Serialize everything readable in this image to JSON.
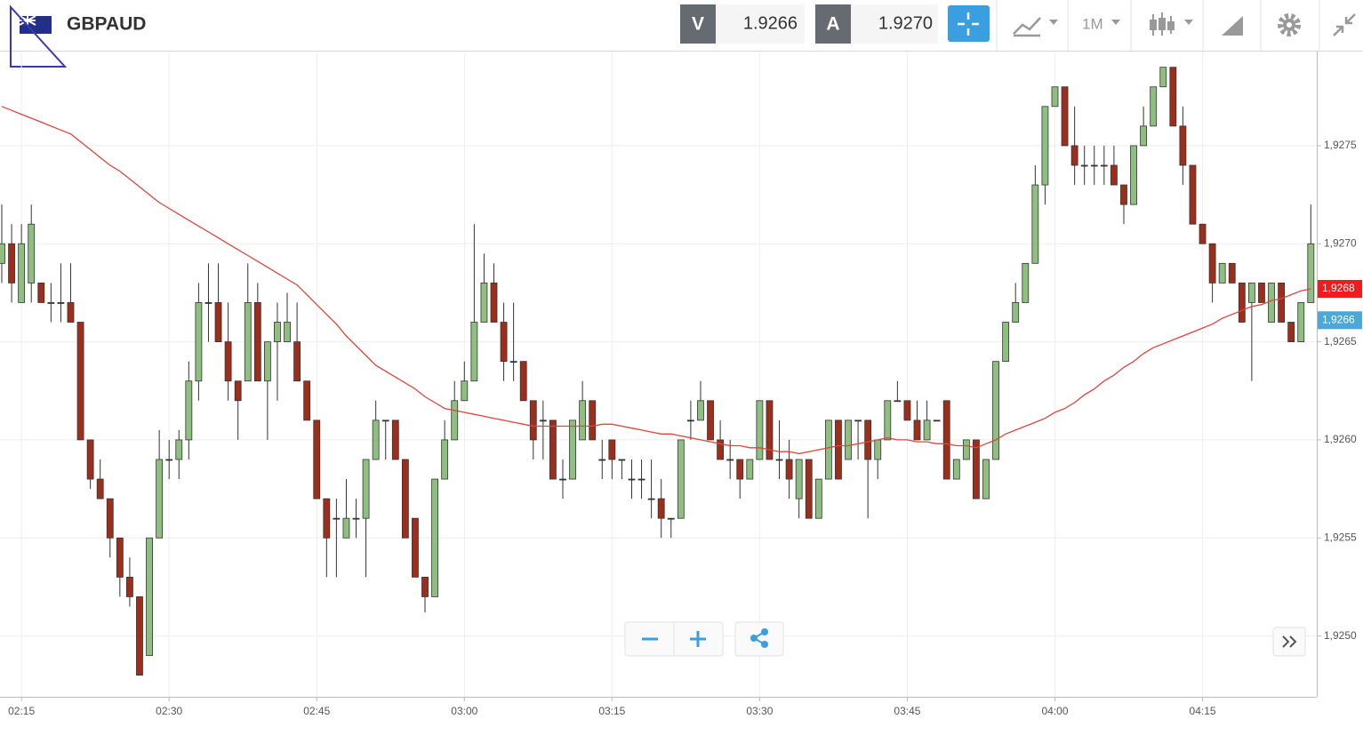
{
  "header": {
    "symbol": "GBPAUD",
    "bid_label": "V",
    "bid": "1.9266",
    "ask_label": "A",
    "ask": "1.9270",
    "timeframe": "1M"
  },
  "chart_data": {
    "type": "candlestick",
    "categories": [
      null,
      null,
      "02:15",
      null,
      null,
      null,
      null,
      null,
      null,
      null,
      null,
      null,
      null,
      null,
      null,
      null,
      null,
      "02:30",
      null,
      null,
      null,
      null,
      null,
      null,
      null,
      null,
      null,
      null,
      null,
      null,
      null,
      null,
      "02:45",
      null,
      null,
      null,
      null,
      null,
      null,
      null,
      null,
      null,
      null,
      null,
      null,
      null,
      null,
      "03:00",
      null,
      null,
      null,
      null,
      null,
      null,
      null,
      null,
      null,
      null,
      null,
      null,
      null,
      null,
      "03:15",
      null,
      null,
      null,
      null,
      null,
      null,
      null,
      null,
      null,
      null,
      null,
      null,
      null,
      null,
      "03:30",
      null,
      null,
      null,
      null,
      null,
      null,
      null,
      null,
      null,
      null,
      null,
      null,
      null,
      null,
      "03:45",
      null,
      null,
      null,
      null,
      null,
      null,
      null,
      null,
      null,
      null,
      null,
      null,
      null,
      null,
      "04:00",
      null,
      null,
      null,
      null,
      null,
      null,
      null,
      null,
      null,
      null,
      null,
      null,
      null,
      null,
      "04:15",
      null,
      null,
      null,
      null,
      null,
      null,
      null,
      null,
      null,
      null,
      null
    ],
    "ohlc": [
      [
        1.9269,
        1.9272,
        1.9268,
        1.927
      ],
      [
        1.927,
        1.9271,
        1.9267,
        1.9268
      ],
      [
        1.9267,
        1.9271,
        1.9267,
        1.927
      ],
      [
        1.9268,
        1.9272,
        1.9267,
        1.9271
      ],
      [
        1.9268,
        1.9268,
        1.9267,
        1.9267
      ],
      [
        1.9267,
        1.9268,
        1.9266,
        1.9267
      ],
      [
        1.9267,
        1.9269,
        1.9266,
        1.9267
      ],
      [
        1.9267,
        1.9269,
        1.9266,
        1.9266
      ],
      [
        1.9266,
        1.9266,
        1.926,
        1.926
      ],
      [
        1.926,
        1.926,
        1.92575,
        1.9258
      ],
      [
        1.9258,
        1.9259,
        1.9257,
        1.9257
      ],
      [
        1.9257,
        1.9257,
        1.9254,
        1.9255
      ],
      [
        1.9255,
        1.9255,
        1.9252,
        1.9253
      ],
      [
        1.9253,
        1.9254,
        1.92515,
        1.9252
      ],
      [
        1.9252,
        1.9252,
        1.9248,
        1.9248
      ],
      [
        1.9249,
        1.9255,
        1.9249,
        1.9255
      ],
      [
        1.9255,
        1.92605,
        1.9255,
        1.9259
      ],
      [
        1.9259,
        1.926,
        1.9258,
        1.9259
      ],
      [
        1.9259,
        1.92605,
        1.9258,
        1.926
      ],
      [
        1.926,
        1.9264,
        1.9259,
        1.9263
      ],
      [
        1.9263,
        1.9268,
        1.9262,
        1.9267
      ],
      [
        1.9267,
        1.9269,
        1.9265,
        1.9267
      ],
      [
        1.9267,
        1.9269,
        1.9265,
        1.9265
      ],
      [
        1.9265,
        1.9267,
        1.9262,
        1.9263
      ],
      [
        1.9263,
        1.9263,
        1.926,
        1.9262
      ],
      [
        1.9263,
        1.9269,
        1.9263,
        1.9267
      ],
      [
        1.9267,
        1.9268,
        1.9263,
        1.9263
      ],
      [
        1.9263,
        1.9265,
        1.926,
        1.9265
      ],
      [
        1.9265,
        1.9267,
        1.9262,
        1.9266
      ],
      [
        1.9265,
        1.92675,
        1.9265,
        1.9266
      ],
      [
        1.9265,
        1.9267,
        1.9263,
        1.9263
      ],
      [
        1.9263,
        1.9263,
        1.9261,
        1.9261
      ],
      [
        1.9261,
        1.9261,
        1.9257,
        1.9257
      ],
      [
        1.9257,
        1.9257,
        1.9253,
        1.9255
      ],
      [
        1.9256,
        1.9257,
        1.9253,
        1.9256
      ],
      [
        1.9255,
        1.9258,
        1.9255,
        1.9256
      ],
      [
        1.9256,
        1.9257,
        1.9255,
        1.9256
      ],
      [
        1.9256,
        1.9259,
        1.9253,
        1.9259
      ],
      [
        1.9259,
        1.9262,
        1.9259,
        1.9261
      ],
      [
        1.9261,
        1.9261,
        1.9259,
        1.9261
      ],
      [
        1.9261,
        1.9261,
        1.9259,
        1.9259
      ],
      [
        1.9259,
        1.9259,
        1.9255,
        1.9255
      ],
      [
        1.9256,
        1.9256,
        1.9253,
        1.9253
      ],
      [
        1.9253,
        1.9253,
        1.92512,
        1.9252
      ],
      [
        1.9252,
        1.9258,
        1.9252,
        1.9258
      ],
      [
        1.9258,
        1.9261,
        1.9258,
        1.926
      ],
      [
        1.926,
        1.9263,
        1.926,
        1.9262
      ],
      [
        1.9262,
        1.9264,
        1.9262,
        1.9263
      ],
      [
        1.9263,
        1.9271,
        1.9263,
        1.9266
      ],
      [
        1.9266,
        1.92695,
        1.9266,
        1.9268
      ],
      [
        1.9268,
        1.9269,
        1.9266,
        1.9266
      ],
      [
        1.9266,
        1.9267,
        1.9263,
        1.9264
      ],
      [
        1.9264,
        1.9267,
        1.9263,
        1.9264
      ],
      [
        1.9264,
        1.9264,
        1.9262,
        1.9262
      ],
      [
        1.9262,
        1.9262,
        1.9259,
        1.926
      ],
      [
        1.9261,
        1.9262,
        1.9259,
        1.9261
      ],
      [
        1.9261,
        1.9261,
        1.9258,
        1.9258
      ],
      [
        1.9258,
        1.9259,
        1.9257,
        1.9258
      ],
      [
        1.9258,
        1.9261,
        1.9258,
        1.9261
      ],
      [
        1.926,
        1.9263,
        1.926,
        1.9262
      ],
      [
        1.9262,
        1.9262,
        1.926,
        1.926
      ],
      [
        1.9259,
        1.926,
        1.9258,
        1.9259
      ],
      [
        1.926,
        1.926,
        1.9258,
        1.9259
      ],
      [
        1.9259,
        1.9259,
        1.9258,
        1.9259
      ],
      [
        1.9258,
        1.9259,
        1.9257,
        1.9258
      ],
      [
        1.9258,
        1.9259,
        1.9257,
        1.9258
      ],
      [
        1.9257,
        1.9259,
        1.9256,
        1.9257
      ],
      [
        1.9257,
        1.9258,
        1.9255,
        1.9256
      ],
      [
        1.9256,
        1.9256,
        1.9255,
        1.9256
      ],
      [
        1.9256,
        1.926,
        1.9256,
        1.926
      ],
      [
        1.9261,
        1.9262,
        1.926,
        1.9261
      ],
      [
        1.9261,
        1.9263,
        1.9261,
        1.9262
      ],
      [
        1.9262,
        1.9262,
        1.926,
        1.926
      ],
      [
        1.926,
        1.9261,
        1.9259,
        1.9259
      ],
      [
        1.9259,
        1.926,
        1.9258,
        1.9259
      ],
      [
        1.9259,
        1.9259,
        1.9257,
        1.9258
      ],
      [
        1.9258,
        1.9259,
        1.9258,
        1.9259
      ],
      [
        1.9259,
        1.9262,
        1.9259,
        1.9262
      ],
      [
        1.9262,
        1.9262,
        1.9259,
        1.9259
      ],
      [
        1.9259,
        1.9261,
        1.9258,
        1.9259
      ],
      [
        1.9259,
        1.926,
        1.9257,
        1.9258
      ],
      [
        1.9257,
        1.9259,
        1.9256,
        1.9259
      ],
      [
        1.9259,
        1.9259,
        1.9256,
        1.9256
      ],
      [
        1.9256,
        1.9258,
        1.9256,
        1.9258
      ],
      [
        1.9258,
        1.9261,
        1.9258,
        1.9261
      ],
      [
        1.9261,
        1.9261,
        1.9258,
        1.9258
      ],
      [
        1.9259,
        1.9261,
        1.9259,
        1.9261
      ],
      [
        1.9261,
        1.9261,
        1.9259,
        1.9261
      ],
      [
        1.9261,
        1.9261,
        1.9256,
        1.9259
      ],
      [
        1.9259,
        1.926,
        1.9258,
        1.926
      ],
      [
        1.926,
        1.9262,
        1.926,
        1.9262
      ],
      [
        1.9262,
        1.9263,
        1.9262,
        1.9262
      ],
      [
        1.9262,
        1.9262,
        1.9261,
        1.9261
      ],
      [
        1.9261,
        1.9262,
        1.926,
        1.926
      ],
      [
        1.926,
        1.9262,
        1.926,
        1.9261
      ],
      [
        1.9261,
        1.9261,
        1.9261,
        1.9261
      ],
      [
        1.9262,
        1.9262,
        1.9258,
        1.9258
      ],
      [
        1.9258,
        1.9259,
        1.9258,
        1.9259
      ],
      [
        1.9259,
        1.926,
        1.9259,
        1.926
      ],
      [
        1.926,
        1.926,
        1.9257,
        1.9257
      ],
      [
        1.9257,
        1.9259,
        1.9257,
        1.9259
      ],
      [
        1.9259,
        1.9264,
        1.9259,
        1.9264
      ],
      [
        1.9264,
        1.9266,
        1.9264,
        1.9266
      ],
      [
        1.9266,
        1.9268,
        1.9266,
        1.9267
      ],
      [
        1.9267,
        1.9269,
        1.9267,
        1.9269
      ],
      [
        1.9269,
        1.9274,
        1.9269,
        1.9273
      ],
      [
        1.9273,
        1.9277,
        1.9272,
        1.9277
      ],
      [
        1.9277,
        1.9278,
        1.9277,
        1.9278
      ],
      [
        1.9278,
        1.9278,
        1.9275,
        1.9275
      ],
      [
        1.9275,
        1.9277,
        1.9273,
        1.9274
      ],
      [
        1.9274,
        1.9275,
        1.9273,
        1.9274
      ],
      [
        1.9274,
        1.9275,
        1.9273,
        1.9274
      ],
      [
        1.9274,
        1.9275,
        1.9273,
        1.9274
      ],
      [
        1.9274,
        1.9275,
        1.9273,
        1.9273
      ],
      [
        1.9273,
        1.9273,
        1.9271,
        1.9272
      ],
      [
        1.9272,
        1.9275,
        1.9272,
        1.9275
      ],
      [
        1.9275,
        1.9277,
        1.9275,
        1.9276
      ],
      [
        1.9276,
        1.9278,
        1.9276,
        1.9278
      ],
      [
        1.9278,
        1.9279,
        1.9278,
        1.9279
      ],
      [
        1.9279,
        1.9279,
        1.9276,
        1.9276
      ],
      [
        1.9276,
        1.9277,
        1.9273,
        1.9274
      ],
      [
        1.9274,
        1.9274,
        1.9271,
        1.9271
      ],
      [
        1.9271,
        1.9271,
        1.927,
        1.927
      ],
      [
        1.927,
        1.927,
        1.9267,
        1.9268
      ],
      [
        1.9268,
        1.9269,
        1.9268,
        1.9269
      ],
      [
        1.9269,
        1.9269,
        1.9268,
        1.9268
      ],
      [
        1.9268,
        1.9268,
        1.9266,
        1.9266
      ],
      [
        1.9267,
        1.9268,
        1.9263,
        1.9268
      ],
      [
        1.9268,
        1.9268,
        1.9267,
        1.9267
      ],
      [
        1.9266,
        1.9268,
        1.9266,
        1.9268
      ],
      [
        1.9268,
        1.9268,
        1.9266,
        1.9266
      ],
      [
        1.9266,
        1.9266,
        1.9265,
        1.9265
      ],
      [
        1.9265,
        1.9267,
        1.9265,
        1.9267
      ],
      [
        1.9267,
        1.9272,
        1.9267,
        1.927
      ]
    ],
    "up_color": "#8fbf80",
    "down_color": "#9e2e1c",
    "lines": [
      {
        "color": "#e0443c",
        "values": [
          1.9277,
          1.92768,
          1.92766,
          1.92764,
          1.92762,
          1.9276,
          1.92758,
          1.92756,
          1.92752,
          1.92748,
          1.92744,
          1.9274,
          1.92737,
          1.92733,
          1.92729,
          1.92725,
          1.92721,
          1.92718,
          1.92715,
          1.92712,
          1.92709,
          1.92706,
          1.92703,
          1.927,
          1.92697,
          1.92694,
          1.92691,
          1.92688,
          1.92685,
          1.92682,
          1.92679,
          1.92674,
          1.92669,
          1.92664,
          1.92659,
          1.92653,
          1.92648,
          1.92643,
          1.92638,
          1.92635,
          1.92632,
          1.92629,
          1.92626,
          1.92622,
          1.92619,
          1.92616,
          1.92615,
          1.92614,
          1.92613,
          1.92612,
          1.92611,
          1.9261,
          1.92609,
          1.92608,
          1.92607,
          1.92607,
          1.92607,
          1.92607,
          1.92607,
          1.92607,
          1.92607,
          1.92608,
          1.92608,
          1.92607,
          1.92606,
          1.92605,
          1.92604,
          1.92603,
          1.92603,
          1.92602,
          1.92601,
          1.926,
          1.92599,
          1.92598,
          1.92597,
          1.92597,
          1.92596,
          1.92596,
          1.92595,
          1.92594,
          1.92594,
          1.92593,
          1.92594,
          1.92595,
          1.92596,
          1.92597,
          1.92597,
          1.92598,
          1.92599,
          1.926,
          1.92601,
          1.926,
          1.926,
          1.92599,
          1.92599,
          1.92598,
          1.92598,
          1.92597,
          1.92597,
          1.92596,
          1.92598,
          1.926,
          1.92603,
          1.92605,
          1.92607,
          1.92609,
          1.92611,
          1.92614,
          1.92616,
          1.92619,
          1.92623,
          1.92626,
          1.9263,
          1.92633,
          1.92637,
          1.9264,
          1.92644,
          1.92647,
          1.92649,
          1.92651,
          1.92653,
          1.92655,
          1.92657,
          1.92659,
          1.92662,
          1.92664,
          1.92666,
          1.92668,
          1.92669,
          1.92671,
          1.92672,
          1.92674,
          1.92676,
          1.92677
        ]
      }
    ],
    "ylim": [
      1.92469,
      1.92798
    ],
    "yticks": [
      {
        "value": 1.925,
        "label": "1,9250"
      },
      {
        "value": 1.9255,
        "label": "1,9255"
      },
      {
        "value": 1.926,
        "label": "1,9260"
      },
      {
        "value": 1.9265,
        "label": "1,9265"
      },
      {
        "value": 1.927,
        "label": "1,9270"
      },
      {
        "value": 1.9275,
        "label": "1,9275"
      }
    ],
    "price_tags": [
      {
        "value": 1.92677,
        "label": "1,9268",
        "color": "#ee1c1c"
      },
      {
        "value": 1.92661,
        "label": "1,9266",
        "color": "#4aa8da"
      }
    ],
    "grid": true
  }
}
